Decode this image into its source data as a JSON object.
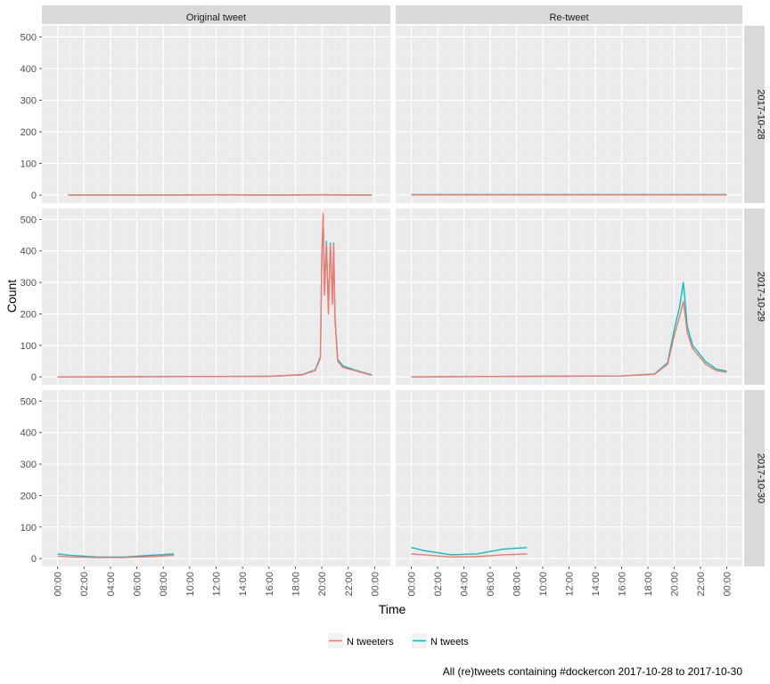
{
  "chart_data": {
    "type": "line",
    "facet_columns": [
      "Original tweet",
      "Re-tweet"
    ],
    "facet_rows": [
      "2017-10-28",
      "2017-10-29",
      "2017-10-30"
    ],
    "xlabel": "Time",
    "ylabel": "Count",
    "caption": "All (re)tweets containing #dockercon 2017-10-28 to 2017-10-30",
    "x_ticks": [
      "00:00",
      "02:00",
      "04:00",
      "06:00",
      "08:00",
      "10:00",
      "12:00",
      "14:00",
      "16:00",
      "18:00",
      "20:00",
      "22:00",
      "00:00"
    ],
    "x_range_hours": [
      0,
      24
    ],
    "y_ticks": [
      0,
      100,
      200,
      300,
      400,
      500
    ],
    "ylim": [
      -25,
      535
    ],
    "legend_position": "bottom",
    "grid": true,
    "series": [
      {
        "name": "N tweeters",
        "color": "#F8766D"
      },
      {
        "name": "N tweets",
        "color": "#00BFC4"
      }
    ],
    "panels": [
      {
        "column": "Original tweet",
        "row": "2017-10-28",
        "x_span_hours": [
          0.8,
          23.8
        ],
        "N tweeters": [
          [
            0.8,
            0
          ],
          [
            8,
            0
          ],
          [
            12,
            1
          ],
          [
            16,
            0
          ],
          [
            20,
            1
          ],
          [
            23.8,
            0
          ]
        ],
        "N tweets": [
          [
            0.8,
            0
          ],
          [
            8,
            0
          ],
          [
            12,
            1
          ],
          [
            16,
            0
          ],
          [
            20,
            1
          ],
          [
            23.8,
            0
          ]
        ]
      },
      {
        "column": "Re-tweet",
        "row": "2017-10-28",
        "x_span_hours": [
          0,
          24
        ],
        "N tweeters": [
          [
            0,
            1
          ],
          [
            6,
            1
          ],
          [
            12,
            1
          ],
          [
            18,
            1
          ],
          [
            24,
            1
          ]
        ],
        "N tweets": [
          [
            0,
            2
          ],
          [
            6,
            2
          ],
          [
            12,
            2
          ],
          [
            18,
            2
          ],
          [
            24,
            2
          ]
        ]
      },
      {
        "column": "Original tweet",
        "row": "2017-10-29",
        "x_span_hours": [
          0,
          23.8
        ],
        "N tweeters": [
          [
            0,
            0
          ],
          [
            10,
            1
          ],
          [
            16,
            2
          ],
          [
            18.5,
            6
          ],
          [
            19.5,
            20
          ],
          [
            19.9,
            60
          ],
          [
            20.0,
            380
          ],
          [
            20.1,
            520
          ],
          [
            20.2,
            260
          ],
          [
            20.35,
            420
          ],
          [
            20.5,
            200
          ],
          [
            20.65,
            420
          ],
          [
            20.8,
            230
          ],
          [
            20.9,
            420
          ],
          [
            21.0,
            180
          ],
          [
            21.2,
            50
          ],
          [
            21.6,
            30
          ],
          [
            22.5,
            20
          ],
          [
            23.8,
            5
          ]
        ],
        "N tweets": [
          [
            0,
            0
          ],
          [
            10,
            1
          ],
          [
            16,
            2
          ],
          [
            18.5,
            7
          ],
          [
            19.5,
            22
          ],
          [
            19.9,
            65
          ],
          [
            20.0,
            390
          ],
          [
            20.1,
            510
          ],
          [
            20.2,
            270
          ],
          [
            20.35,
            430
          ],
          [
            20.5,
            210
          ],
          [
            20.65,
            425
          ],
          [
            20.8,
            240
          ],
          [
            20.9,
            425
          ],
          [
            21.0,
            190
          ],
          [
            21.2,
            55
          ],
          [
            21.6,
            35
          ],
          [
            22.5,
            22
          ],
          [
            23.8,
            6
          ]
        ]
      },
      {
        "column": "Re-tweet",
        "row": "2017-10-29",
        "x_span_hours": [
          0,
          24
        ],
        "N tweeters": [
          [
            0,
            0
          ],
          [
            10,
            2
          ],
          [
            16,
            3
          ],
          [
            18.5,
            8
          ],
          [
            19.5,
            40
          ],
          [
            20.0,
            130
          ],
          [
            20.4,
            190
          ],
          [
            20.7,
            240
          ],
          [
            21.0,
            140
          ],
          [
            21.4,
            90
          ],
          [
            21.8,
            70
          ],
          [
            22.4,
            40
          ],
          [
            23.2,
            20
          ],
          [
            24,
            15
          ]
        ],
        "N tweets": [
          [
            0,
            0
          ],
          [
            10,
            2
          ],
          [
            16,
            3
          ],
          [
            18.5,
            9
          ],
          [
            19.5,
            45
          ],
          [
            20.0,
            150
          ],
          [
            20.4,
            220
          ],
          [
            20.7,
            300
          ],
          [
            21.0,
            160
          ],
          [
            21.4,
            100
          ],
          [
            21.8,
            80
          ],
          [
            22.4,
            48
          ],
          [
            23.2,
            25
          ],
          [
            24,
            18
          ]
        ]
      },
      {
        "column": "Original tweet",
        "row": "2017-10-30",
        "x_span_hours": [
          0,
          8.8
        ],
        "N tweeters": [
          [
            0,
            8
          ],
          [
            1,
            5
          ],
          [
            3,
            3
          ],
          [
            5,
            3
          ],
          [
            7,
            6
          ],
          [
            8.8,
            10
          ]
        ],
        "N tweets": [
          [
            0,
            15
          ],
          [
            1,
            10
          ],
          [
            3,
            5
          ],
          [
            5,
            5
          ],
          [
            7,
            10
          ],
          [
            8.8,
            15
          ]
        ]
      },
      {
        "column": "Re-tweet",
        "row": "2017-10-30",
        "x_span_hours": [
          0,
          8.8
        ],
        "N tweeters": [
          [
            0,
            15
          ],
          [
            1,
            12
          ],
          [
            3,
            5
          ],
          [
            5,
            6
          ],
          [
            7,
            12
          ],
          [
            8.8,
            15
          ]
        ],
        "N tweets": [
          [
            0,
            35
          ],
          [
            1,
            25
          ],
          [
            3,
            12
          ],
          [
            5,
            15
          ],
          [
            7,
            30
          ],
          [
            8.8,
            35
          ]
        ]
      }
    ]
  }
}
